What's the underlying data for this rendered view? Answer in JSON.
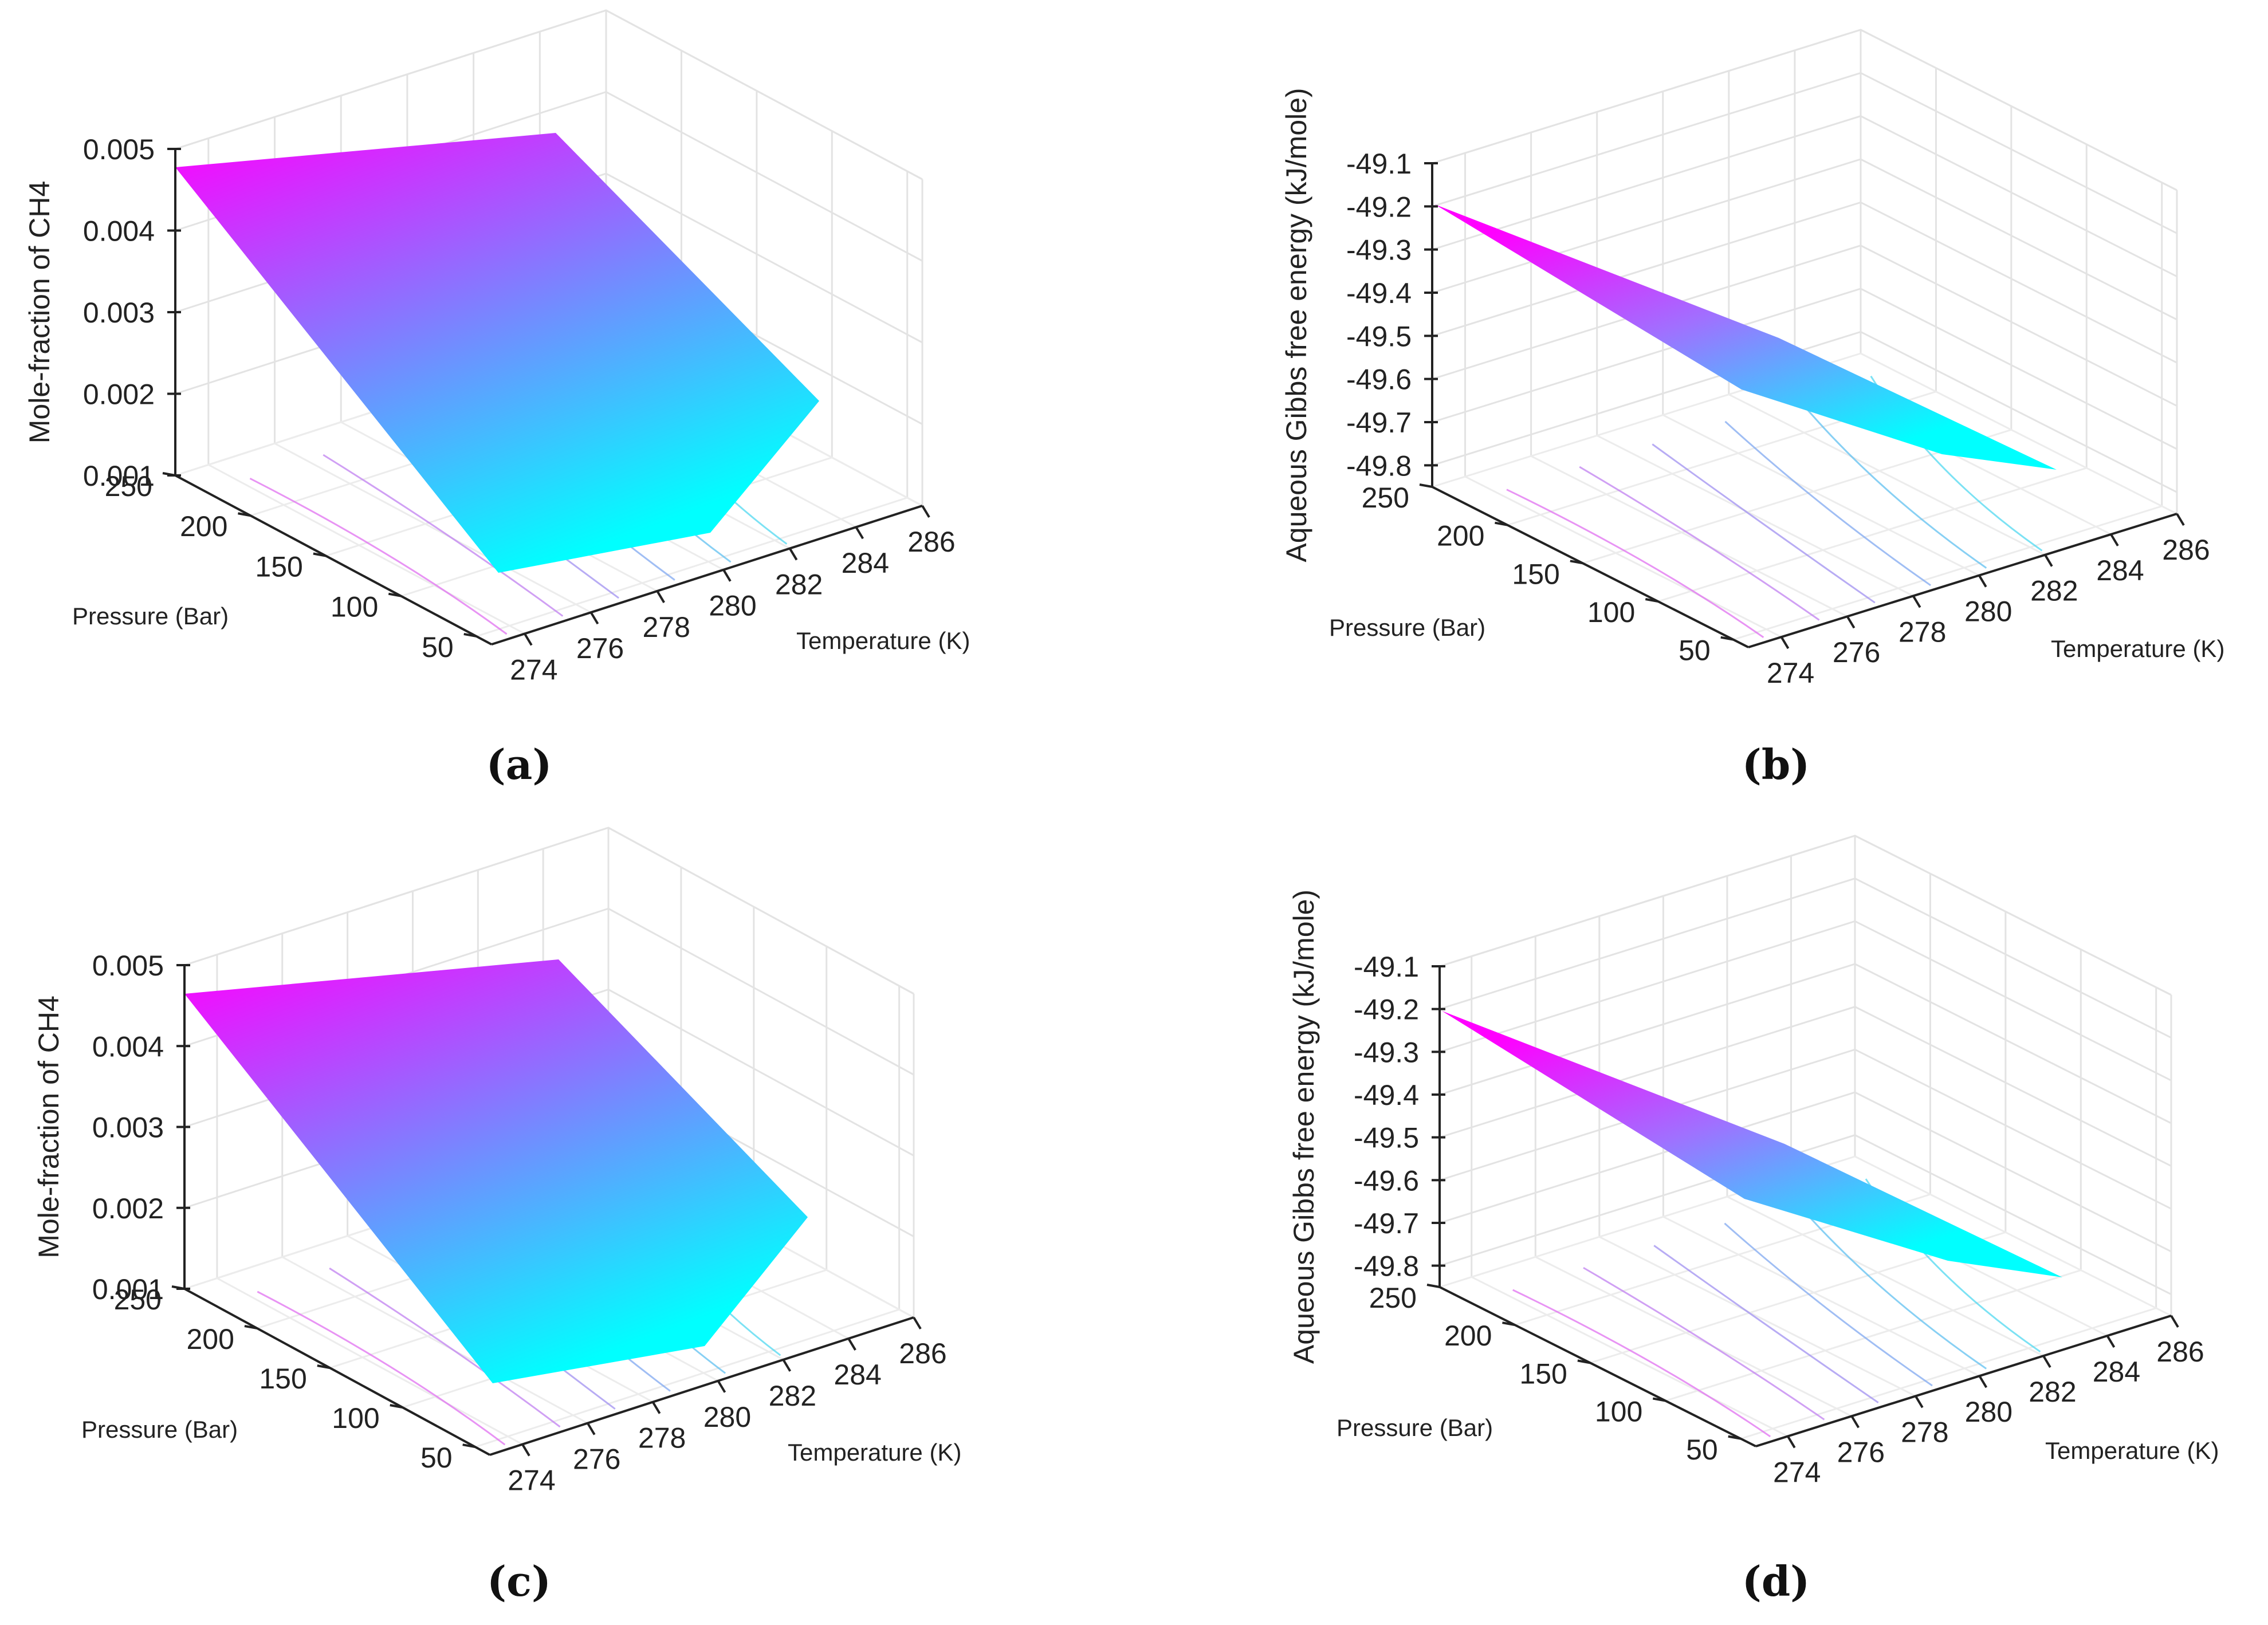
{
  "figure": {
    "captions": [
      "(a)",
      "(b)",
      "(c)",
      "(d)"
    ]
  },
  "chart_data": [
    {
      "type": "surface3d",
      "panel_label": "(a)",
      "xlabel": "Temperature (K)",
      "ylabel": "Pressure (Bar)",
      "zlabel": "Mole-fraction of CH4",
      "x_ticks": [
        "274",
        "276",
        "278",
        "280",
        "282",
        "284",
        "286"
      ],
      "y_ticks": [
        "50",
        "100",
        "150",
        "200",
        "250"
      ],
      "z_ticks": [
        "0.001",
        "0.002",
        "0.003",
        "0.004",
        "0.005"
      ],
      "xlim": [
        273,
        286
      ],
      "ylim": [
        40,
        250
      ],
      "zlim": [
        0.001,
        0.005
      ],
      "surface_corners": {
        "T273_P250": 0.0047,
        "T273_P40": 0.0012,
        "T286_P250": 0.0049,
        "T286_P40": 0.0012
      },
      "colormap": [
        "#ff00ff",
        "#00ffff"
      ]
    },
    {
      "type": "surface3d",
      "panel_label": "(b)",
      "xlabel": "Temperature (K)",
      "ylabel": "Pressure (Bar)",
      "zlabel": "Aqueous Gibbs free energy (kJ/mole)",
      "x_ticks": [
        "274",
        "276",
        "278",
        "280",
        "282",
        "284",
        "286"
      ],
      "y_ticks": [
        "50",
        "100",
        "150",
        "200",
        "250"
      ],
      "z_ticks": [
        "-49.1",
        "-49.2",
        "-49.3",
        "-49.4",
        "-49.5",
        "-49.6",
        "-49.7",
        "-49.8"
      ],
      "xlim": [
        273,
        286
      ],
      "ylim": [
        40,
        250
      ],
      "zlim": [
        -49.85,
        -49.1
      ],
      "surface_corners": {
        "T273_P250": -49.2,
        "T273_P40": -49.6,
        "T286_P250": -49.5,
        "T286_P40": -49.8
      },
      "colormap": [
        "#ff00ff",
        "#00ffff"
      ]
    },
    {
      "type": "surface3d",
      "panel_label": "(c)",
      "xlabel": "Temperature (K)",
      "ylabel": "Pressure (Bar)",
      "zlabel": "Mole-fraction of CH4",
      "x_ticks": [
        "274",
        "276",
        "278",
        "280",
        "282",
        "284",
        "286"
      ],
      "y_ticks": [
        "50",
        "100",
        "150",
        "200",
        "250"
      ],
      "z_ticks": [
        "0.001",
        "0.002",
        "0.003",
        "0.004",
        "0.005"
      ],
      "xlim": [
        273,
        286
      ],
      "ylim": [
        40,
        250
      ],
      "zlim": [
        0.001,
        0.005
      ],
      "surface_corners": {
        "T273_P250": 0.0047,
        "T273_P40": 0.0012,
        "T286_P250": 0.0049,
        "T286_P40": 0.0012
      },
      "colormap": [
        "#ff00ff",
        "#00ffff"
      ]
    },
    {
      "type": "surface3d",
      "panel_label": "(d)",
      "xlabel": "Temperature (K)",
      "ylabel": "Pressure (Bar)",
      "zlabel": "Aqueous Gibbs free energy (kJ/mole)",
      "x_ticks": [
        "274",
        "276",
        "278",
        "280",
        "282",
        "284",
        "286"
      ],
      "y_ticks": [
        "50",
        "100",
        "150",
        "200",
        "250"
      ],
      "z_ticks": [
        "-49.1",
        "-49.2",
        "-49.3",
        "-49.4",
        "-49.5",
        "-49.6",
        "-49.7",
        "-49.8"
      ],
      "xlim": [
        273,
        286
      ],
      "ylim": [
        40,
        250
      ],
      "zlim": [
        -49.85,
        -49.1
      ],
      "surface_corners": {
        "T273_P250": -49.2,
        "T273_P40": -49.6,
        "T286_P250": -49.5,
        "T286_P40": -49.8
      },
      "colormap": [
        "#ff00ff",
        "#00ffff"
      ]
    }
  ]
}
